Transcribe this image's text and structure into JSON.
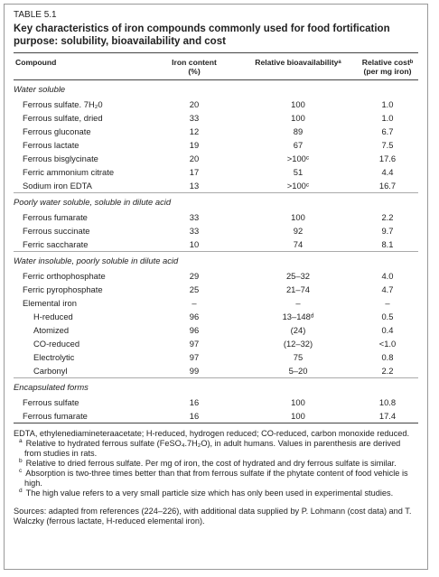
{
  "table_label": "TABLE 5.1",
  "title": "Key characteristics of iron compounds commonly used for food fortification purpose: solubility, bioavailability and cost",
  "columns": [
    "Compound",
    "Iron content\n(%)",
    "Relative bioavailabilityᵃ",
    "Relative costᵇ\n(per mg iron)"
  ],
  "sections": [
    {
      "heading": "Water soluble",
      "rows": [
        {
          "cells": [
            "Ferrous sulfate. 7H₂0",
            "20",
            "100",
            "1.0"
          ]
        },
        {
          "cells": [
            "Ferrous sulfate, dried",
            "33",
            "100",
            "1.0"
          ]
        },
        {
          "cells": [
            "Ferrous gluconate",
            "12",
            "89",
            "6.7"
          ]
        },
        {
          "cells": [
            "Ferrous lactate",
            "19",
            "67",
            "7.5"
          ]
        },
        {
          "cells": [
            "Ferrous bisglycinate",
            "20",
            ">100ᶜ",
            "17.6"
          ]
        },
        {
          "cells": [
            "Ferric ammonium citrate",
            "17",
            "51",
            "4.4"
          ]
        },
        {
          "cells": [
            "Sodium iron EDTA",
            "13",
            ">100ᶜ",
            "16.7"
          ]
        }
      ]
    },
    {
      "heading": "Poorly water soluble, soluble in dilute acid",
      "rows": [
        {
          "cells": [
            "Ferrous fumarate",
            "33",
            "100",
            "2.2"
          ]
        },
        {
          "cells": [
            "Ferrous succinate",
            "33",
            "92",
            "9.7"
          ]
        },
        {
          "cells": [
            "Ferric saccharate",
            "10",
            "74",
            "8.1"
          ]
        }
      ]
    },
    {
      "heading": "Water insoluble, poorly soluble in dilute acid",
      "rows": [
        {
          "cells": [
            "Ferric orthophosphate",
            "29",
            "25–32",
            "4.0"
          ]
        },
        {
          "cells": [
            "Ferric pyrophosphate",
            "25",
            "21–74",
            "4.7"
          ]
        },
        {
          "cells": [
            "Elemental iron",
            "–",
            "–",
            "–"
          ],
          "subrows": [
            [
              "H-reduced",
              "96",
              "13–148ᵈ",
              "0.5"
            ],
            [
              "Atomized",
              "96",
              "(24)",
              "0.4"
            ],
            [
              "CO-reduced",
              "97",
              "(12–32)",
              "<1.0"
            ],
            [
              "Electrolytic",
              "97",
              "75",
              "0.8"
            ],
            [
              "Carbonyl",
              "99",
              "5–20",
              "2.2"
            ]
          ]
        }
      ]
    },
    {
      "heading": "Encapsulated forms",
      "rows": [
        {
          "cells": [
            "Ferrous sulfate",
            "16",
            "100",
            "10.8"
          ]
        },
        {
          "cells": [
            "Ferrous fumarate",
            "16",
            "100",
            "17.4"
          ]
        }
      ]
    }
  ],
  "abbreviations": "EDTA, ethylenediamineteraacetate; H-reduced, hydrogen reduced; CO-reduced, carbon monoxide reduced.",
  "footnotes": [
    {
      "marker": "a",
      "text": "Relative to hydrated ferrous sulfate (FeSO₄.7H₂O), in adult humans. Values in parenthesis are derived from studies in rats."
    },
    {
      "marker": "b",
      "text": "Relative to dried ferrous sulfate. Per mg of iron, the cost of hydrated and dry ferrous sulfate is similar."
    },
    {
      "marker": "c",
      "text": "Absorption is two-three times better than that from ferrous sulfate if the phytate content of food vehicle is high."
    },
    {
      "marker": "d",
      "text": "The high value refers to a very small particle size which has only been used in experimental studies."
    }
  ],
  "sources": "Sources: adapted from references (224–226), with additional data supplied by P. Lohmann (cost data) and T. Walczky (ferrous lactate, H-reduced elemental iron)."
}
